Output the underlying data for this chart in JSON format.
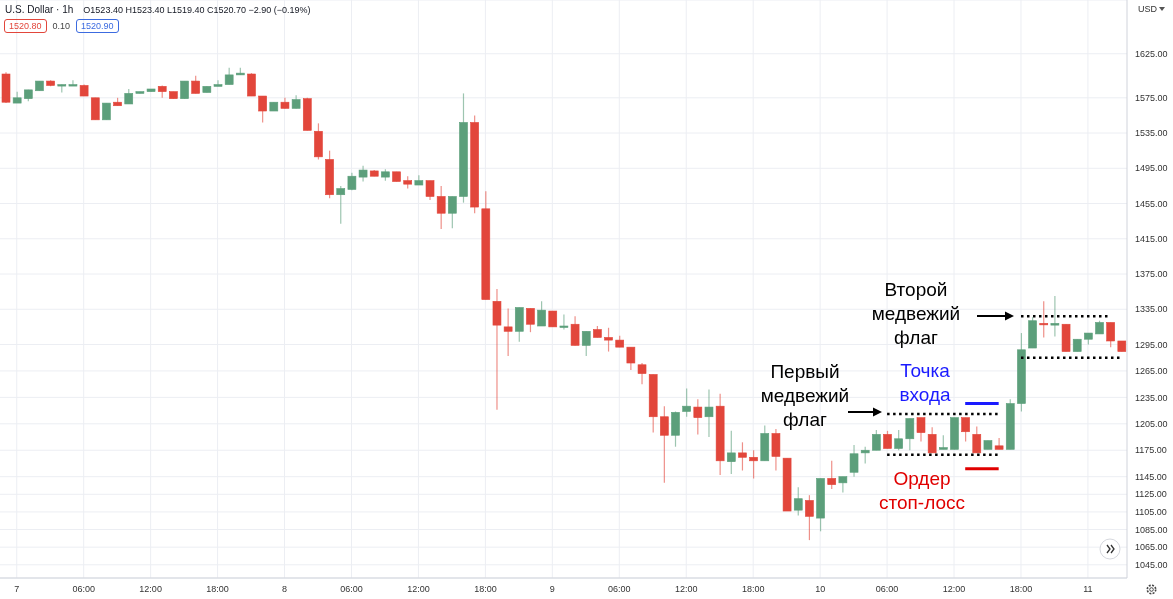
{
  "chart_data": {
    "type": "candlestick",
    "title": "U.S. Dollar · 1h",
    "subtitle": "O1523.40 H1523.40 L1519.40 C1520.70 −2.90 (−0.19%)",
    "ylabel": "USD",
    "categories": [
      null,
      "7",
      null,
      null,
      null,
      null,
      null,
      "06:00",
      null,
      null,
      null,
      null,
      null,
      "12:00",
      null,
      null,
      null,
      null,
      null,
      "18:00",
      null,
      null,
      null,
      null,
      null,
      "8",
      null,
      null,
      null,
      null,
      null,
      "06:00",
      null,
      null,
      null,
      null,
      null,
      "12:00",
      null,
      null,
      null,
      null,
      null,
      "18:00",
      null,
      null,
      null,
      null,
      null,
      "9",
      null,
      null,
      null,
      null,
      null,
      "06:00",
      null,
      null,
      null,
      null,
      null,
      "12:00",
      null,
      null,
      null,
      null,
      null,
      "18:00",
      null,
      null,
      null,
      null,
      null,
      "10",
      null,
      null,
      null,
      null,
      null,
      "06:00",
      null,
      null,
      null,
      null,
      null,
      "12:00",
      null,
      null,
      null,
      null,
      null,
      "18:00",
      null,
      null,
      null,
      null,
      null,
      "11",
      null,
      null,
      null
    ],
    "ohlc": [
      [
        1602,
        1604,
        1569,
        1570
      ],
      [
        1569,
        1582,
        1569,
        1575
      ],
      [
        1574,
        1584,
        1571,
        1584
      ],
      [
        1583,
        1594,
        1583,
        1594
      ],
      [
        1594,
        1595,
        1588,
        1589
      ],
      [
        1589,
        1590,
        1581,
        1590
      ],
      [
        1589,
        1595,
        1589,
        1590
      ],
      [
        1589,
        1590,
        1577,
        1577
      ],
      [
        1575,
        1575,
        1550,
        1550
      ],
      [
        1550,
        1569,
        1550,
        1569
      ],
      [
        1570,
        1575,
        1566,
        1566
      ],
      [
        1568,
        1585,
        1568,
        1580
      ],
      [
        1580,
        1582,
        1580,
        1582
      ],
      [
        1582,
        1585,
        1582,
        1585
      ],
      [
        1588,
        1589,
        1575,
        1582
      ],
      [
        1582,
        1582,
        1574,
        1574
      ],
      [
        1574,
        1594,
        1574,
        1594
      ],
      [
        1594,
        1600,
        1580,
        1580
      ],
      [
        1581,
        1588,
        1581,
        1588
      ],
      [
        1588,
        1595,
        1588,
        1590
      ],
      [
        1590,
        1609,
        1590,
        1601
      ],
      [
        1601,
        1609,
        1601,
        1603
      ],
      [
        1602,
        1603,
        1577,
        1577
      ],
      [
        1577,
        1577,
        1547,
        1560
      ],
      [
        1560,
        1570,
        1560,
        1570
      ],
      [
        1570,
        1575,
        1563,
        1563
      ],
      [
        1563,
        1578,
        1563,
        1573
      ],
      [
        1574,
        1575,
        1538,
        1538
      ],
      [
        1537,
        1546,
        1505,
        1508
      ],
      [
        1505,
        1515,
        1461,
        1465
      ],
      [
        1465,
        1475,
        1432,
        1472
      ],
      [
        1471,
        1490,
        1470,
        1486
      ],
      [
        1485,
        1498,
        1480,
        1493
      ],
      [
        1492,
        1493,
        1486,
        1486
      ],
      [
        1485,
        1494,
        1481,
        1491
      ],
      [
        1491,
        1491,
        1480,
        1480
      ],
      [
        1481,
        1486,
        1472,
        1477
      ],
      [
        1476,
        1487,
        1476,
        1481
      ],
      [
        1481,
        1481,
        1459,
        1463
      ],
      [
        1463,
        1475,
        1426,
        1444
      ],
      [
        1444,
        1463,
        1427,
        1463
      ],
      [
        1463,
        1580,
        1456,
        1547
      ],
      [
        1547,
        1555,
        1444,
        1451
      ],
      [
        1449,
        1469,
        1346,
        1346
      ],
      [
        1344,
        1358,
        1221,
        1317
      ],
      [
        1315,
        1336,
        1282,
        1310
      ],
      [
        1310,
        1337,
        1298,
        1337
      ],
      [
        1336,
        1336,
        1309,
        1318
      ],
      [
        1316,
        1344,
        1316,
        1334
      ],
      [
        1333,
        1333,
        1315,
        1315
      ],
      [
        1315,
        1329,
        1312,
        1316
      ],
      [
        1318,
        1327,
        1294,
        1294
      ],
      [
        1294,
        1310,
        1282,
        1310
      ],
      [
        1312,
        1316,
        1303,
        1303
      ],
      [
        1303,
        1314,
        1287,
        1300
      ],
      [
        1300,
        1305,
        1292,
        1292
      ],
      [
        1292,
        1292,
        1266,
        1274
      ],
      [
        1272,
        1274,
        1250,
        1262
      ],
      [
        1261,
        1261,
        1195,
        1213
      ],
      [
        1213,
        1225,
        1138,
        1192
      ],
      [
        1192,
        1219,
        1179,
        1218
      ],
      [
        1219,
        1245,
        1213,
        1225
      ],
      [
        1224,
        1233,
        1193,
        1212
      ],
      [
        1213,
        1244,
        1190,
        1224
      ],
      [
        1225,
        1239,
        1147,
        1163
      ],
      [
        1162,
        1197,
        1148,
        1172
      ],
      [
        1172,
        1184,
        1152,
        1167
      ],
      [
        1167,
        1175,
        1143,
        1163
      ],
      [
        1163,
        1203,
        1163,
        1194
      ],
      [
        1194,
        1199,
        1152,
        1168
      ],
      [
        1166,
        1166,
        1106,
        1106
      ],
      [
        1107,
        1133,
        1101,
        1120
      ],
      [
        1118,
        1124,
        1073,
        1100
      ],
      [
        1098,
        1143,
        1083,
        1143
      ],
      [
        1143,
        1163,
        1131,
        1136
      ],
      [
        1138,
        1145,
        1127,
        1145
      ],
      [
        1150,
        1181,
        1145,
        1171
      ],
      [
        1172,
        1179,
        1160,
        1175
      ],
      [
        1175,
        1198,
        1175,
        1193
      ],
      [
        1193,
        1197,
        1177,
        1177
      ],
      [
        1177,
        1198,
        1175,
        1188
      ],
      [
        1188,
        1211,
        1175,
        1211
      ],
      [
        1212,
        1212,
        1185,
        1195
      ],
      [
        1193,
        1201,
        1172,
        1172
      ],
      [
        1176,
        1192,
        1176,
        1178
      ],
      [
        1176,
        1212,
        1176,
        1212
      ],
      [
        1212,
        1212,
        1185,
        1196
      ],
      [
        1193,
        1202,
        1172,
        1172
      ],
      [
        1176,
        1186,
        1176,
        1186
      ],
      [
        1180,
        1189,
        1176,
        1176
      ],
      [
        1176,
        1233,
        1176,
        1228
      ],
      [
        1228,
        1308,
        1219,
        1289
      ],
      [
        1291,
        1326,
        1291,
        1322
      ],
      [
        1319,
        1344,
        1303,
        1318
      ],
      [
        1317,
        1350,
        1304,
        1319
      ],
      [
        1318,
        1318,
        1287,
        1287
      ],
      [
        1287,
        1301,
        1287,
        1301
      ],
      [
        1301,
        1308,
        1295,
        1308
      ],
      [
        1307,
        1322,
        1307,
        1320
      ],
      [
        1320,
        1320,
        1292,
        1299
      ],
      [
        1299,
        1299,
        1287,
        1287
      ]
    ],
    "colors": [
      "#e2463b",
      "#5c9f7b",
      "#5c9f7b",
      "#5c9f7b",
      "#e2463b",
      "#5c9f7b",
      "#5c9f7b",
      "#e2463b",
      "#e2463b",
      "#5c9f7b",
      "#e2463b",
      "#5c9f7b",
      "#5c9f7b",
      "#5c9f7b",
      "#e2463b",
      "#e2463b",
      "#5c9f7b",
      "#e2463b",
      "#5c9f7b",
      "#5c9f7b",
      "#5c9f7b",
      "#5c9f7b",
      "#e2463b",
      "#e2463b",
      "#5c9f7b",
      "#e2463b",
      "#5c9f7b",
      "#e2463b",
      "#e2463b",
      "#e2463b",
      "#5c9f7b",
      "#5c9f7b",
      "#5c9f7b",
      "#e2463b",
      "#5c9f7b",
      "#e2463b",
      "#e2463b",
      "#5c9f7b",
      "#e2463b",
      "#e2463b",
      "#5c9f7b",
      "#5c9f7b",
      "#e2463b",
      "#e2463b",
      "#e2463b",
      "#e2463b",
      "#5c9f7b",
      "#e2463b",
      "#5c9f7b",
      "#e2463b",
      "#5c9f7b",
      "#e2463b",
      "#5c9f7b",
      "#e2463b",
      "#e2463b",
      "#e2463b",
      "#e2463b",
      "#e2463b",
      "#e2463b",
      "#e2463b",
      "#5c9f7b",
      "#5c9f7b",
      "#e2463b",
      "#5c9f7b",
      "#e2463b",
      "#5c9f7b",
      "#e2463b",
      "#e2463b",
      "#5c9f7b",
      "#e2463b",
      "#e2463b",
      "#5c9f7b",
      "#e2463b",
      "#5c9f7b",
      "#e2463b",
      "#5c9f7b",
      "#5c9f7b",
      "#5c9f7b",
      "#5c9f7b",
      "#e2463b",
      "#5c9f7b",
      "#5c9f7b",
      "#e2463b",
      "#e2463b",
      "#5c9f7b",
      "#5c9f7b",
      "#e2463b",
      "#e2463b",
      "#5c9f7b",
      "#e2463b",
      "#5c9f7b",
      "#5c9f7b",
      "#5c9f7b",
      "#e2463b",
      "#5c9f7b",
      "#e2463b",
      "#5c9f7b",
      "#5c9f7b",
      "#5c9f7b",
      "#e2463b",
      "#e2463b"
    ],
    "series": [
      {
        "type": "line",
        "color": "#000000",
        "line_style": "dotted",
        "values": [
          null,
          null,
          null,
          null,
          null,
          null,
          null,
          null,
          null,
          null,
          null,
          null,
          null,
          null,
          null,
          null,
          null,
          null,
          null,
          null,
          null,
          null,
          null,
          null,
          null,
          null,
          null,
          null,
          null,
          null,
          null,
          null,
          null,
          null,
          null,
          null,
          null,
          null,
          null,
          null,
          null,
          null,
          null,
          null,
          null,
          null,
          null,
          null,
          null,
          null,
          null,
          null,
          null,
          null,
          null,
          null,
          null,
          null,
          null,
          null,
          null,
          null,
          null,
          null,
          null,
          null,
          null,
          null,
          null,
          null,
          null,
          null,
          null,
          null,
          null,
          null,
          null,
          null,
          null,
          1216,
          1216,
          1216,
          1216,
          1216,
          1216,
          1216,
          1216,
          1216,
          1216,
          1216,
          null,
          null,
          null,
          null,
          null,
          null,
          null,
          null,
          null,
          null,
          null
        ]
      },
      {
        "type": "line",
        "color": "#000000",
        "line_style": "dotted",
        "values": [
          null,
          null,
          null,
          null,
          null,
          null,
          null,
          null,
          null,
          null,
          null,
          null,
          null,
          null,
          null,
          null,
          null,
          null,
          null,
          null,
          null,
          null,
          null,
          null,
          null,
          null,
          null,
          null,
          null,
          null,
          null,
          null,
          null,
          null,
          null,
          null,
          null,
          null,
          null,
          null,
          null,
          null,
          null,
          null,
          null,
          null,
          null,
          null,
          null,
          null,
          null,
          null,
          null,
          null,
          null,
          null,
          null,
          null,
          null,
          null,
          null,
          null,
          null,
          null,
          null,
          null,
          null,
          null,
          null,
          null,
          null,
          null,
          null,
          null,
          null,
          null,
          null,
          null,
          null,
          1170,
          1170,
          1170,
          1170,
          1170,
          1170,
          1170,
          1170,
          1170,
          1170,
          1170,
          null,
          null,
          null,
          null,
          null,
          null,
          null,
          null,
          null,
          null,
          null
        ]
      },
      {
        "type": "line",
        "color": "#000000",
        "line_style": "dotted",
        "values": [
          null,
          null,
          null,
          null,
          null,
          null,
          null,
          null,
          null,
          null,
          null,
          null,
          null,
          null,
          null,
          null,
          null,
          null,
          null,
          null,
          null,
          null,
          null,
          null,
          null,
          null,
          null,
          null,
          null,
          null,
          null,
          null,
          null,
          null,
          null,
          null,
          null,
          null,
          null,
          null,
          null,
          null,
          null,
          null,
          null,
          null,
          null,
          null,
          null,
          null,
          null,
          null,
          null,
          null,
          null,
          null,
          null,
          null,
          null,
          null,
          null,
          null,
          null,
          null,
          null,
          null,
          null,
          null,
          null,
          null,
          null,
          null,
          null,
          null,
          null,
          null,
          null,
          null,
          null,
          null,
          null,
          null,
          null,
          null,
          null,
          null,
          null,
          null,
          null,
          null,
          null,
          1327,
          1327,
          1327,
          1327,
          1327,
          1327,
          1327,
          1327,
          1327,
          null
        ]
      },
      {
        "type": "line",
        "color": "#000000",
        "line_style": "dotted",
        "values": [
          null,
          null,
          null,
          null,
          null,
          null,
          null,
          null,
          null,
          null,
          null,
          null,
          null,
          null,
          null,
          null,
          null,
          null,
          null,
          null,
          null,
          null,
          null,
          null,
          null,
          null,
          null,
          null,
          null,
          null,
          null,
          null,
          null,
          null,
          null,
          null,
          null,
          null,
          null,
          null,
          null,
          null,
          null,
          null,
          null,
          null,
          null,
          null,
          null,
          null,
          null,
          null,
          null,
          null,
          null,
          null,
          null,
          null,
          null,
          null,
          null,
          null,
          null,
          null,
          null,
          null,
          null,
          null,
          null,
          null,
          null,
          null,
          null,
          null,
          null,
          null,
          null,
          null,
          null,
          null,
          null,
          null,
          null,
          null,
          null,
          null,
          null,
          null,
          null,
          null,
          null,
          1280,
          1280,
          1280,
          1280,
          1280,
          1280,
          1280,
          1280,
          1280,
          1280
        ]
      },
      {
        "type": "line",
        "color": "#1a1aff",
        "line_style": "solid",
        "values": [
          null,
          null,
          null,
          null,
          null,
          null,
          null,
          null,
          null,
          null,
          null,
          null,
          null,
          null,
          null,
          null,
          null,
          null,
          null,
          null,
          null,
          null,
          null,
          null,
          null,
          null,
          null,
          null,
          null,
          null,
          null,
          null,
          null,
          null,
          null,
          null,
          null,
          null,
          null,
          null,
          null,
          null,
          null,
          null,
          null,
          null,
          null,
          null,
          null,
          null,
          null,
          null,
          null,
          null,
          null,
          null,
          null,
          null,
          null,
          null,
          null,
          null,
          null,
          null,
          null,
          null,
          null,
          null,
          null,
          null,
          null,
          null,
          null,
          null,
          null,
          null,
          null,
          null,
          null,
          null,
          null,
          null,
          null,
          null,
          null,
          null,
          1228,
          1228,
          1228,
          1228,
          null,
          null,
          null,
          null,
          null,
          null,
          null,
          null,
          null,
          null,
          null
        ]
      },
      {
        "type": "line",
        "color": "#e00000",
        "line_style": "solid",
        "values": [
          null,
          null,
          null,
          null,
          null,
          null,
          null,
          null,
          null,
          null,
          null,
          null,
          null,
          null,
          null,
          null,
          null,
          null,
          null,
          null,
          null,
          null,
          null,
          null,
          null,
          null,
          null,
          null,
          null,
          null,
          null,
          null,
          null,
          null,
          null,
          null,
          null,
          null,
          null,
          null,
          null,
          null,
          null,
          null,
          null,
          null,
          null,
          null,
          null,
          null,
          null,
          null,
          null,
          null,
          null,
          null,
          null,
          null,
          null,
          null,
          null,
          null,
          null,
          null,
          null,
          null,
          null,
          null,
          null,
          null,
          null,
          null,
          null,
          null,
          null,
          null,
          null,
          null,
          null,
          null,
          null,
          null,
          null,
          null,
          null,
          null,
          1154,
          1154,
          1154,
          1154,
          null,
          null,
          null,
          null,
          null,
          null,
          null,
          null,
          null,
          null,
          null
        ]
      }
    ],
    "annotations": [
      "Первый\nмедвежий\nфлаг",
      "Второй\nмедвежий\nфлаг",
      "Точка\nвхода",
      "Ордер\nстоп-лосс",
      "1520.80",
      "0.10",
      "1520.90"
    ],
    "ylim": [
      1030,
      1686
    ],
    "yticks": [
      {
        "value": 1625,
        "label": "1625.00"
      },
      {
        "value": 1575,
        "label": "1575.00"
      },
      {
        "value": 1535,
        "label": "1535.00"
      },
      {
        "value": 1495,
        "label": "1495.00"
      },
      {
        "value": 1455,
        "label": "1455.00"
      },
      {
        "value": 1415,
        "label": "1415.00"
      },
      {
        "value": 1375,
        "label": "1375.00"
      },
      {
        "value": 1335,
        "label": "1335.00"
      },
      {
        "value": 1295,
        "label": "1295.00"
      },
      {
        "value": 1265,
        "label": "1265.00"
      },
      {
        "value": 1235,
        "label": "1235.00"
      },
      {
        "value": 1205,
        "label": "1205.00"
      },
      {
        "value": 1175,
        "label": "1175.00"
      },
      {
        "value": 1145,
        "label": "1145.00"
      },
      {
        "value": 1125,
        "label": "1125.00"
      },
      {
        "value": 1105,
        "label": "1105.00"
      },
      {
        "value": 1085,
        "label": "1085.00"
      },
      {
        "value": 1065,
        "label": "1065.00"
      },
      {
        "value": 1045,
        "label": "1045.00"
      }
    ],
    "grid": true
  }
}
